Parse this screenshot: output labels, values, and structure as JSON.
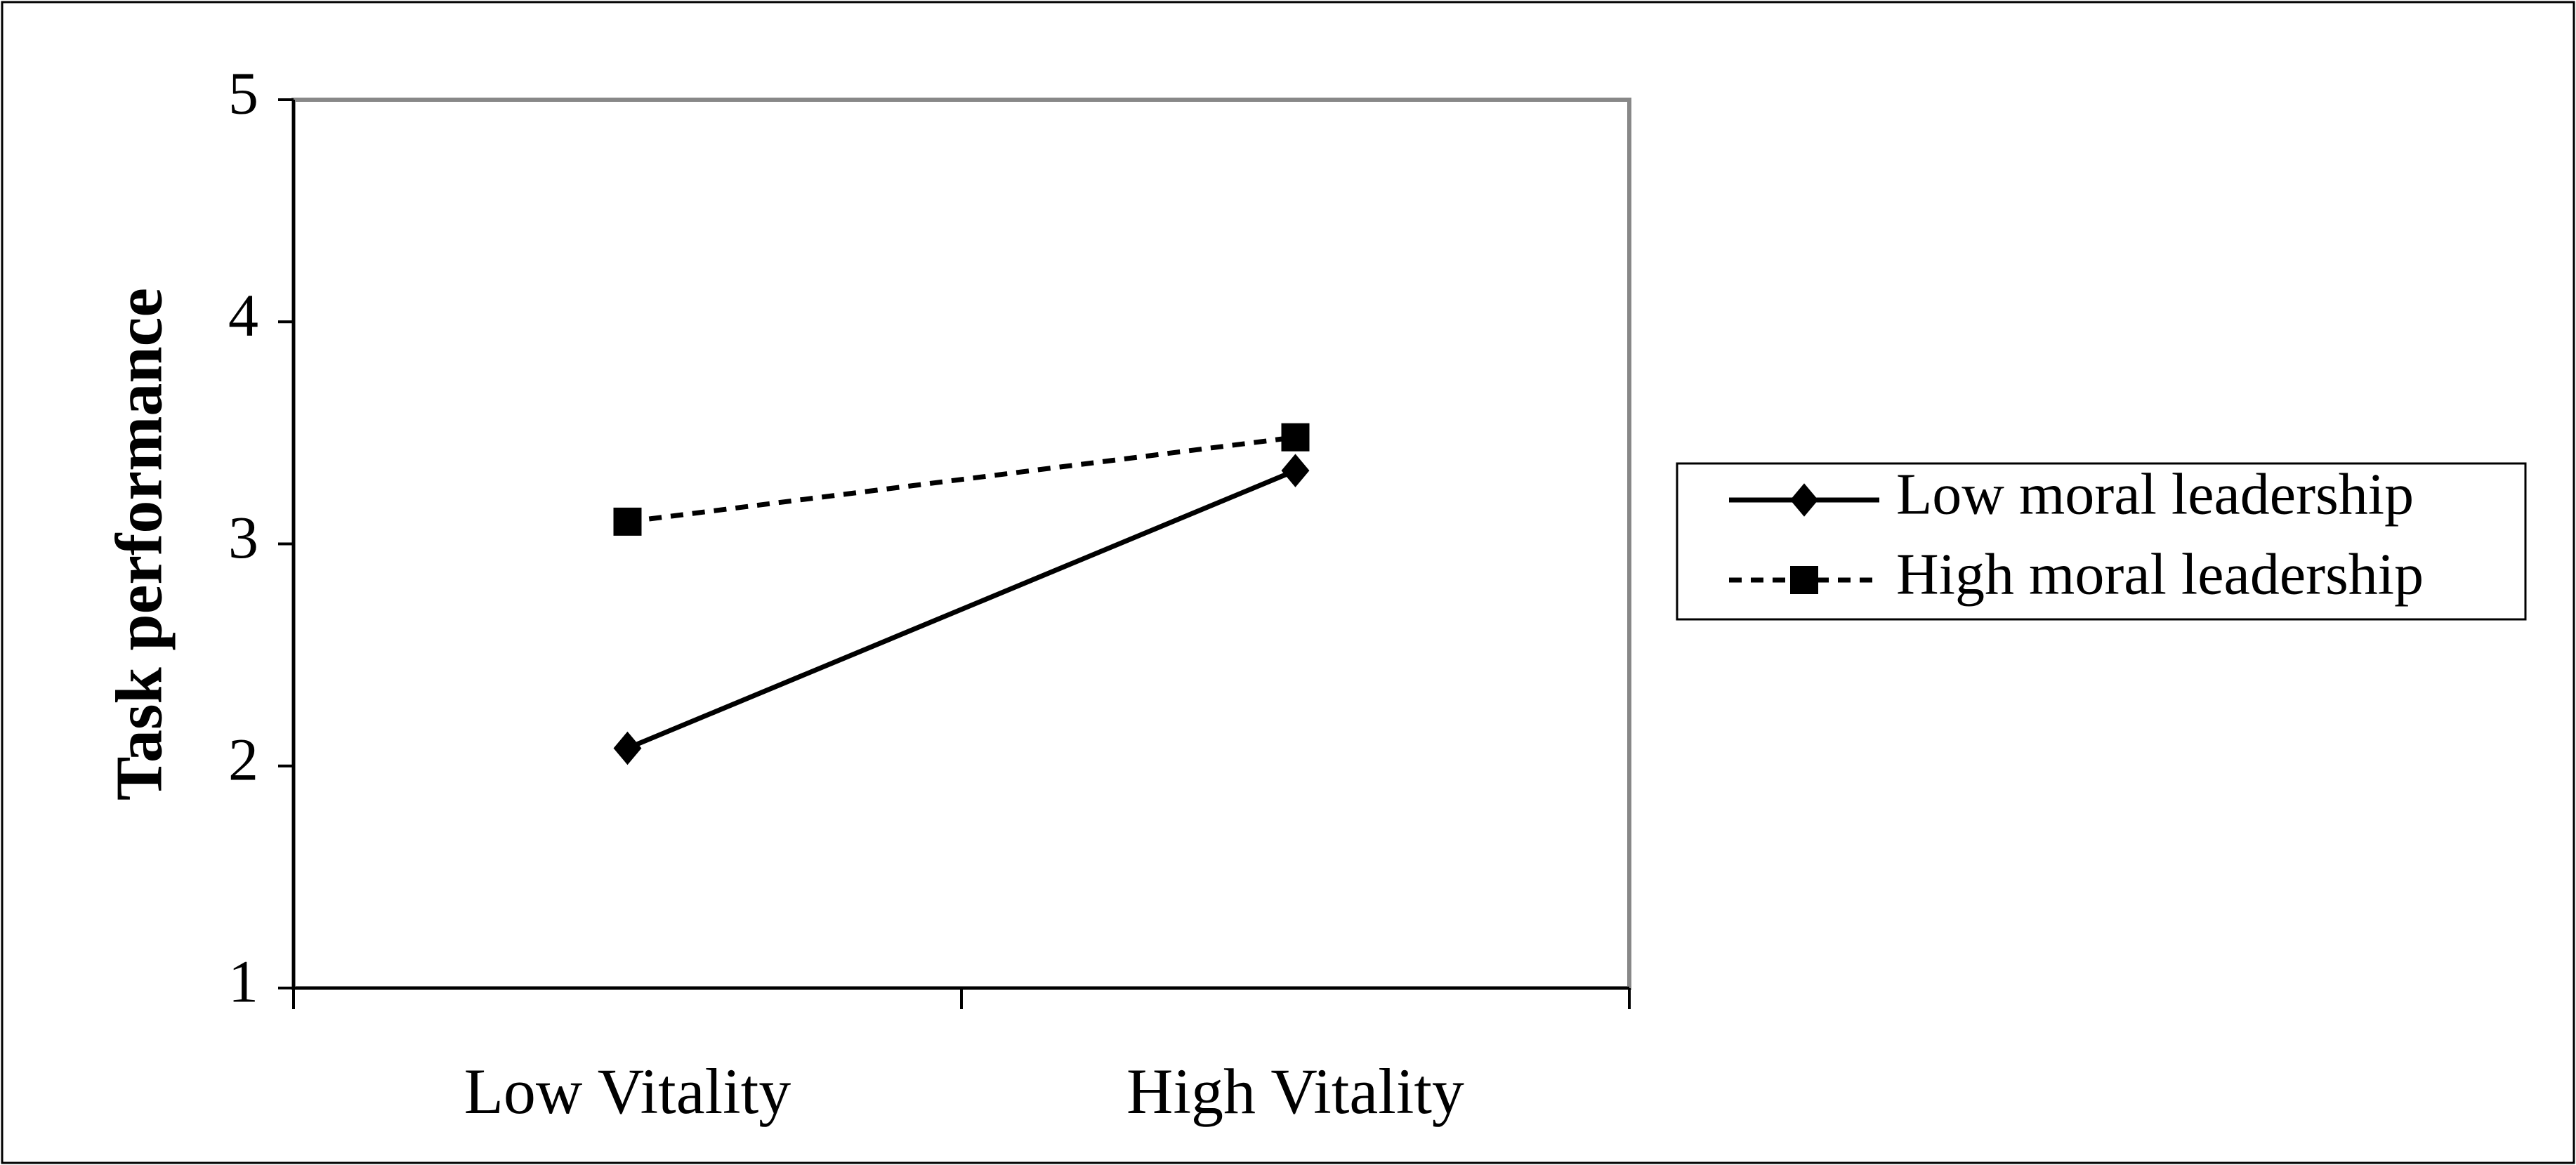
{
  "chart_data": {
    "type": "line",
    "title": "",
    "xlabel": "",
    "ylabel": "Task performance",
    "categories": [
      "Low Vitality",
      "High Vitality"
    ],
    "ylim": [
      1,
      5
    ],
    "yticks": [
      "1",
      "2",
      "3",
      "4",
      "5"
    ],
    "grid": false,
    "legend_position": "right",
    "series": [
      {
        "name": "Low moral leadership",
        "values": [
          2.08,
          3.33
        ],
        "line_style": "solid",
        "marker": "diamond",
        "color": "#000000"
      },
      {
        "name": "High moral leadership",
        "values": [
          3.1,
          3.48
        ],
        "line_style": "dashed",
        "marker": "square",
        "color": "#000000"
      }
    ]
  }
}
